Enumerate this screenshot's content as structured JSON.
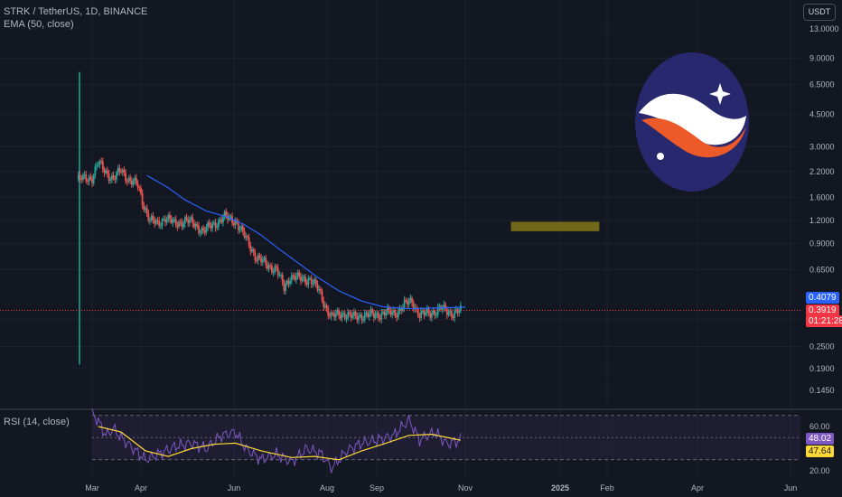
{
  "header": {
    "symbol_line": "STRK / TetherUS, 1D, BINANCE",
    "indicator": "EMA (50, close)",
    "currency_button": "USDT"
  },
  "rsi_pane": {
    "label": "RSI (14, close)"
  },
  "price_badges": {
    "ema_value": "0.4079",
    "last_price": "0.3919",
    "countdown": "01:21:28",
    "rsi_value": "48.02",
    "rsi_ma_value": "47.64"
  },
  "colors": {
    "background": "#131722",
    "up": "#26a69a",
    "down": "#ef5350",
    "ema": "#2962ff",
    "rsi": "#7e57c2",
    "rsi_ma": "#fdd835",
    "box": "#827717",
    "logo_circle": "#28286e",
    "logo_wave": "#ec5a2a"
  },
  "icons": [
    "starknet-logo-icon"
  ],
  "chart_data": [
    {
      "type": "candlestick",
      "title": "STRK / TetherUS, 1D, BINANCE",
      "scale": "log",
      "y_ticks": [
        13.0,
        9.0,
        6.5,
        4.5,
        3.0,
        2.2,
        1.6,
        1.2,
        0.9,
        0.65,
        0.35,
        0.25,
        0.19,
        0.145
      ],
      "y_tick_labels": [
        "13.0000",
        "9.0000",
        "6.5000",
        "4.5000",
        "3.0000",
        "2.2000",
        "1.6000",
        "1.2000",
        "0.9000",
        "0.6500",
        "0.3500",
        "0.2500",
        "0.1900",
        "0.1450"
      ],
      "x_ticks": [
        "Mar",
        "Apr",
        "Jun",
        "Aug",
        "Sep",
        "Nov",
        "2025",
        "Feb",
        "Apr",
        "Jun"
      ],
      "x_ticks_bold": [
        "2025"
      ],
      "first_candle": {
        "date": "2024-02-20",
        "open": 2.0,
        "high": 7.6,
        "low": 0.2,
        "close": 1.95
      },
      "price_path": [
        [
          "2024-02-21",
          2.0
        ],
        [
          "2024-03-01",
          2.05
        ],
        [
          "2024-03-05",
          2.45
        ],
        [
          "2024-03-10",
          2.2
        ],
        [
          "2024-03-15",
          2.0
        ],
        [
          "2024-03-20",
          2.25
        ],
        [
          "2024-03-25",
          2.0
        ],
        [
          "2024-03-31",
          1.85
        ],
        [
          "2024-04-04",
          1.45
        ],
        [
          "2024-04-08",
          1.2
        ],
        [
          "2024-04-13",
          1.15
        ],
        [
          "2024-04-18",
          1.25
        ],
        [
          "2024-04-24",
          1.15
        ],
        [
          "2024-05-01",
          1.2
        ],
        [
          "2024-05-07",
          1.15
        ],
        [
          "2024-05-13",
          1.05
        ],
        [
          "2024-05-20",
          1.15
        ],
        [
          "2024-05-27",
          1.25
        ],
        [
          "2024-06-03",
          1.2
        ],
        [
          "2024-06-07",
          1.05
        ],
        [
          "2024-06-12",
          0.9
        ],
        [
          "2024-06-17",
          0.75
        ],
        [
          "2024-06-23",
          0.7
        ],
        [
          "2024-06-30",
          0.65
        ],
        [
          "2024-07-05",
          0.52
        ],
        [
          "2024-07-09",
          0.6
        ],
        [
          "2024-07-16",
          0.58
        ],
        [
          "2024-07-22",
          0.58
        ],
        [
          "2024-07-28",
          0.5
        ],
        [
          "2024-08-02",
          0.4
        ],
        [
          "2024-08-05",
          0.36
        ],
        [
          "2024-08-12",
          0.38
        ],
        [
          "2024-08-19",
          0.36
        ],
        [
          "2024-08-26",
          0.37
        ],
        [
          "2024-09-02",
          0.37
        ],
        [
          "2024-09-09",
          0.38
        ],
        [
          "2024-09-16",
          0.38
        ],
        [
          "2024-09-22",
          0.42
        ],
        [
          "2024-09-27",
          0.44
        ],
        [
          "2024-10-02",
          0.37
        ],
        [
          "2024-10-09",
          0.38
        ],
        [
          "2024-10-16",
          0.4
        ],
        [
          "2024-10-23",
          0.38
        ],
        [
          "2024-10-29",
          0.39
        ]
      ],
      "ema_50": [
        [
          "2024-04-06",
          2.1
        ],
        [
          "2024-04-20",
          1.8
        ],
        [
          "2024-05-01",
          1.55
        ],
        [
          "2024-05-15",
          1.35
        ],
        [
          "2024-05-29",
          1.25
        ],
        [
          "2024-06-08",
          1.15
        ],
        [
          "2024-06-20",
          1.0
        ],
        [
          "2024-07-01",
          0.85
        ],
        [
          "2024-07-15",
          0.7
        ],
        [
          "2024-07-26",
          0.6
        ],
        [
          "2024-08-10",
          0.5
        ],
        [
          "2024-08-25",
          0.44
        ],
        [
          "2024-09-08",
          0.41
        ],
        [
          "2024-09-25",
          0.4
        ],
        [
          "2024-10-15",
          0.405
        ],
        [
          "2024-11-01",
          0.408
        ]
      ],
      "ema_last": 0.4079,
      "last_price": 0.3919,
      "highlight_box": {
        "from": "2024-12-01",
        "to": "2025-01-28",
        "low": 1.05,
        "high": 1.18
      }
    },
    {
      "type": "line",
      "title": "RSI (14, close)",
      "y_ticks": [
        60.0,
        20.0
      ],
      "y_tick_labels": [
        "60.00",
        "20.00"
      ],
      "bands": [
        70,
        30
      ],
      "midline": 50,
      "series": [
        {
          "name": "RSI",
          "values": [
            [
              "2024-03-01",
              72
            ],
            [
              "2024-03-05",
              65
            ],
            [
              "2024-03-10",
              52
            ],
            [
              "2024-03-15",
              58
            ],
            [
              "2024-03-20",
              50
            ],
            [
              "2024-03-28",
              40
            ],
            [
              "2024-04-05",
              30
            ],
            [
              "2024-04-15",
              36
            ],
            [
              "2024-04-25",
              42
            ],
            [
              "2024-05-05",
              45
            ],
            [
              "2024-05-15",
              40
            ],
            [
              "2024-05-25",
              52
            ],
            [
              "2024-06-03",
              55
            ],
            [
              "2024-06-10",
              40
            ],
            [
              "2024-06-20",
              30
            ],
            [
              "2024-06-30",
              35
            ],
            [
              "2024-07-10",
              28
            ],
            [
              "2024-07-20",
              40
            ],
            [
              "2024-07-30",
              35
            ],
            [
              "2024-08-05",
              22
            ],
            [
              "2024-08-15",
              38
            ],
            [
              "2024-08-25",
              45
            ],
            [
              "2024-09-05",
              48
            ],
            [
              "2024-09-15",
              52
            ],
            [
              "2024-09-25",
              66
            ],
            [
              "2024-10-02",
              48
            ],
            [
              "2024-10-12",
              55
            ],
            [
              "2024-10-20",
              44
            ],
            [
              "2024-10-29",
              48
            ]
          ]
        },
        {
          "name": "RSI-based MA",
          "values": [
            [
              "2024-03-05",
              60
            ],
            [
              "2024-03-20",
              55
            ],
            [
              "2024-04-05",
              38
            ],
            [
              "2024-04-20",
              33
            ],
            [
              "2024-05-05",
              40
            ],
            [
              "2024-05-20",
              44
            ],
            [
              "2024-06-03",
              45
            ],
            [
              "2024-06-20",
              38
            ],
            [
              "2024-07-10",
              32
            ],
            [
              "2024-07-25",
              33
            ],
            [
              "2024-08-10",
              30
            ],
            [
              "2024-08-25",
              38
            ],
            [
              "2024-09-10",
              45
            ],
            [
              "2024-09-25",
              52
            ],
            [
              "2024-10-10",
              53
            ],
            [
              "2024-10-29",
              47.6
            ]
          ]
        }
      ]
    }
  ]
}
